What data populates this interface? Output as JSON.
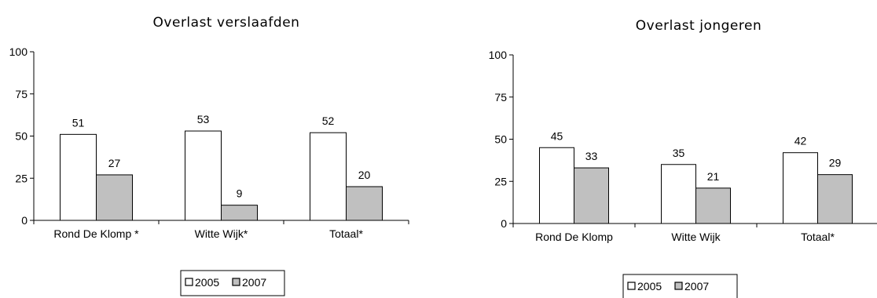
{
  "chart_data": [
    {
      "type": "bar",
      "title": "Overlast verslaafden",
      "categories": [
        "Rond De Klomp *",
        "Witte Wijk*",
        "Totaal*"
      ],
      "series": [
        {
          "name": "2005",
          "values": [
            51,
            53,
            52
          ],
          "color": "#ffffff"
        },
        {
          "name": "2007",
          "values": [
            27,
            9,
            20
          ],
          "color": "#c0c0c0"
        }
      ],
      "ylim": [
        0,
        100
      ],
      "yticks": [
        0,
        25,
        50,
        75,
        100
      ],
      "grid": false,
      "legend": "bottom"
    },
    {
      "type": "bar",
      "title": "Overlast jongeren",
      "categories": [
        "Rond De Klomp",
        "Witte Wijk",
        "Totaal*"
      ],
      "series": [
        {
          "name": "2005",
          "values": [
            45,
            35,
            42
          ],
          "color": "#ffffff"
        },
        {
          "name": "2007",
          "values": [
            33,
            21,
            29
          ],
          "color": "#c0c0c0"
        }
      ],
      "ylim": [
        0,
        100
      ],
      "yticks": [
        0,
        25,
        50,
        75,
        100
      ],
      "grid": false,
      "legend": "bottom"
    }
  ]
}
